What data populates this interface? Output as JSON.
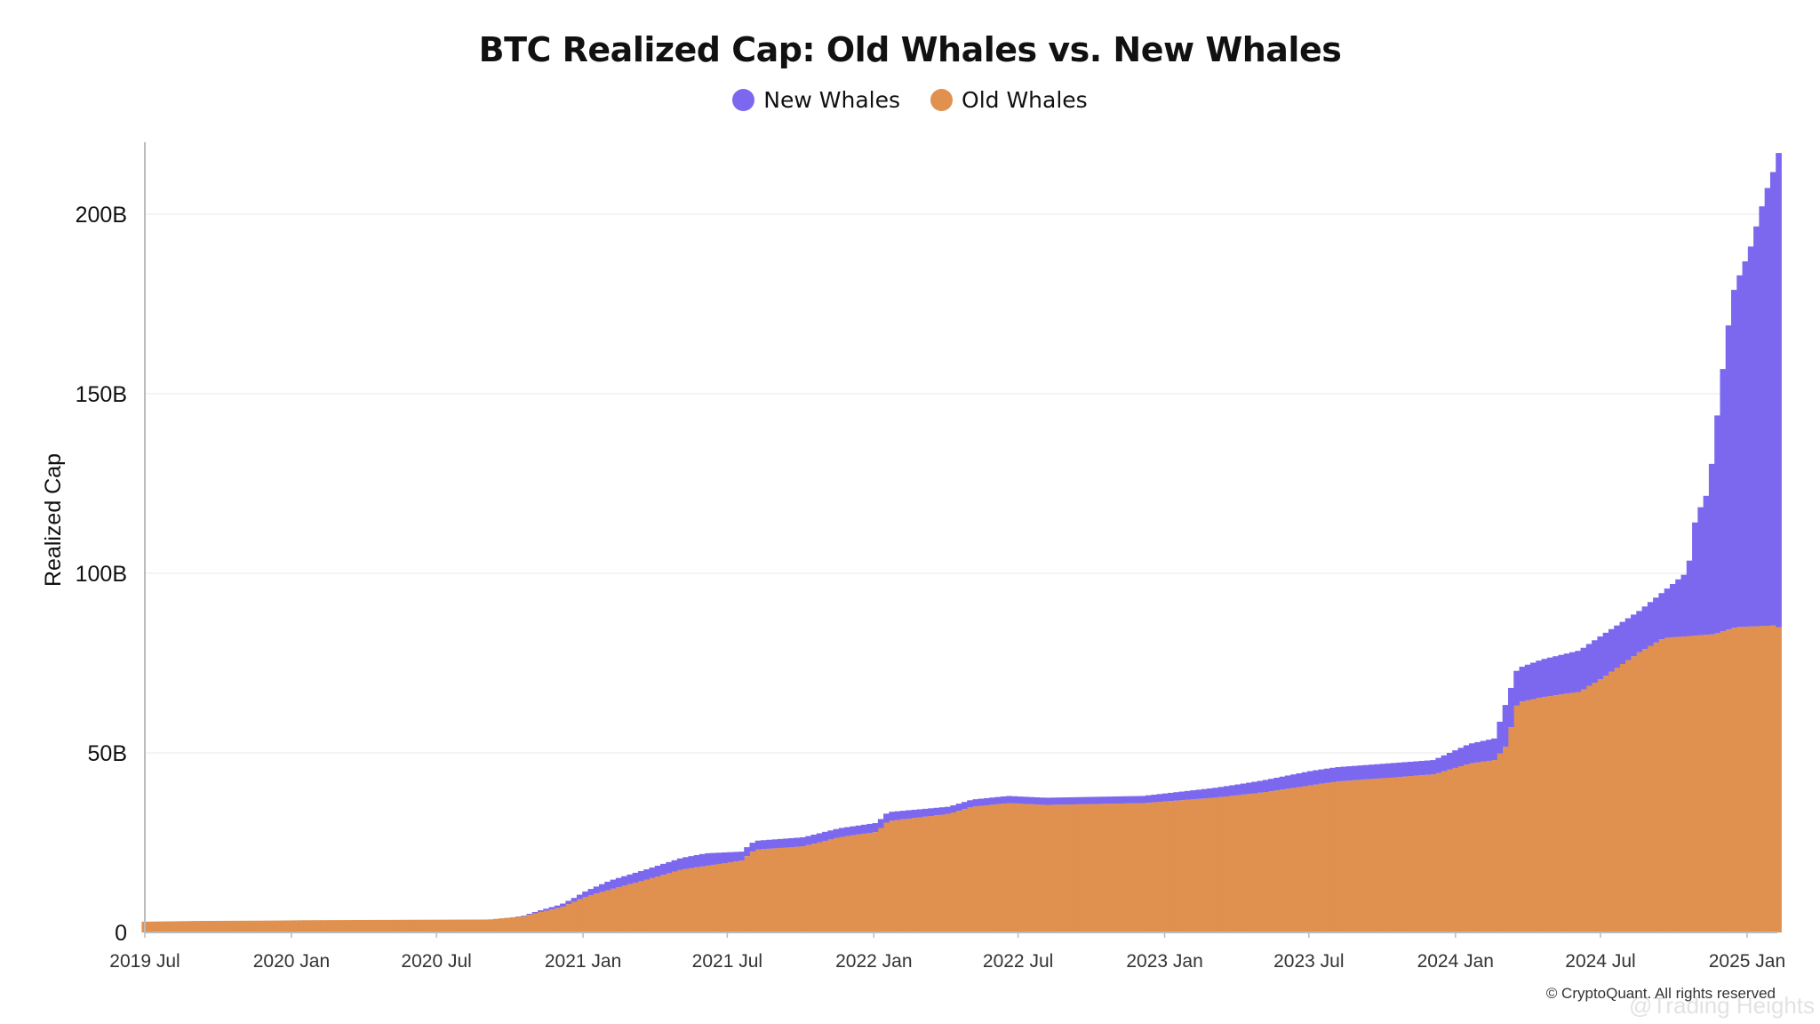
{
  "colors": {
    "new_whales": "#7b68ee",
    "old_whales": "#e0914f",
    "axis": "#bbbbbb",
    "grid": "#f0f0f0"
  },
  "copyright": "© CryptoQuant. All rights reserved",
  "watermark": "@Trading Heights",
  "chart_data": {
    "type": "bar",
    "stacked": true,
    "title": "BTC Realized Cap: Old Whales vs. New Whales",
    "xlabel": "",
    "ylabel": "Realized Cap",
    "ylim": [
      0,
      220
    ],
    "y_unit": "B",
    "grid": true,
    "legend_position": "top-center",
    "y_ticks": [
      {
        "value": 0,
        "label": "0"
      },
      {
        "value": 50,
        "label": "50B"
      },
      {
        "value": 100,
        "label": "100B"
      },
      {
        "value": 150,
        "label": "150B"
      },
      {
        "value": 200,
        "label": "200B"
      }
    ],
    "x_range": [
      "2019-07-01",
      "2025-02-08"
    ],
    "x_ticks": [
      {
        "date": "2019-07-01",
        "label": "2019 Jul"
      },
      {
        "date": "2020-01-01",
        "label": "2020 Jan"
      },
      {
        "date": "2020-07-01",
        "label": "2020 Jul"
      },
      {
        "date": "2021-01-01",
        "label": "2021 Jan"
      },
      {
        "date": "2021-07-01",
        "label": "2021 Jul"
      },
      {
        "date": "2022-01-01",
        "label": "2022 Jan"
      },
      {
        "date": "2022-07-01",
        "label": "2022 Jul"
      },
      {
        "date": "2023-01-01",
        "label": "2023 Jan"
      },
      {
        "date": "2023-07-01",
        "label": "2023 Jul"
      },
      {
        "date": "2024-01-01",
        "label": "2024 Jan"
      },
      {
        "date": "2024-07-01",
        "label": "2024 Jul"
      },
      {
        "date": "2025-01-01",
        "label": "2025 Jan"
      }
    ],
    "series": [
      {
        "name": "Old Whales",
        "points": [
          [
            "2019-06-27",
            3.0
          ],
          [
            "2019-08-01",
            3.1
          ],
          [
            "2019-09-01",
            3.2
          ],
          [
            "2019-12-01",
            3.3
          ],
          [
            "2020-01-15",
            3.4
          ],
          [
            "2020-05-01",
            3.5
          ],
          [
            "2020-09-01",
            3.6
          ],
          [
            "2020-10-15",
            4.5
          ],
          [
            "2020-11-01",
            5.5
          ],
          [
            "2020-12-01",
            7.0
          ],
          [
            "2021-01-01",
            10.0
          ],
          [
            "2021-02-01",
            12.0
          ],
          [
            "2021-03-15",
            14.5
          ],
          [
            "2021-05-01",
            17.5
          ],
          [
            "2021-06-15",
            19.0
          ],
          [
            "2021-07-15",
            20.0
          ],
          [
            "2021-08-01",
            23.0
          ],
          [
            "2021-10-01",
            24.0
          ],
          [
            "2021-11-15",
            26.5
          ],
          [
            "2022-01-01",
            28.0
          ],
          [
            "2022-01-15",
            31.0
          ],
          [
            "2022-04-01",
            33.0
          ],
          [
            "2022-05-01",
            35.0
          ],
          [
            "2022-06-15",
            36.0
          ],
          [
            "2022-08-01",
            35.5
          ],
          [
            "2022-12-01",
            36.0
          ],
          [
            "2023-03-01",
            37.5
          ],
          [
            "2023-05-01",
            39.0
          ],
          [
            "2023-07-01",
            41.0
          ],
          [
            "2023-08-01",
            42.0
          ],
          [
            "2023-12-01",
            44.0
          ],
          [
            "2024-01-15",
            47.0
          ],
          [
            "2024-02-15",
            48.0
          ],
          [
            "2024-03-01",
            52.0
          ],
          [
            "2024-03-15",
            64.0
          ],
          [
            "2024-04-15",
            65.5
          ],
          [
            "2024-06-01",
            67.0
          ],
          [
            "2024-07-01",
            71.0
          ],
          [
            "2024-08-15",
            78.0
          ],
          [
            "2024-09-15",
            82.0
          ],
          [
            "2024-11-15",
            83.0
          ],
          [
            "2024-12-15",
            85.0
          ],
          [
            "2025-02-05",
            85.5
          ],
          [
            "2025-02-08",
            84.0
          ]
        ]
      },
      {
        "name": "New Whales",
        "points": [
          [
            "2019-06-27",
            0.0
          ],
          [
            "2020-10-01",
            0.0
          ],
          [
            "2020-12-15",
            1.0
          ],
          [
            "2021-02-01",
            2.5
          ],
          [
            "2021-04-01",
            3.0
          ],
          [
            "2021-06-01",
            3.5
          ],
          [
            "2021-07-15",
            2.5
          ],
          [
            "2021-10-01",
            2.5
          ],
          [
            "2022-01-15",
            2.5
          ],
          [
            "2022-04-01",
            2.0
          ],
          [
            "2022-06-15",
            2.0
          ],
          [
            "2022-12-01",
            2.0
          ],
          [
            "2023-04-01",
            3.0
          ],
          [
            "2023-07-01",
            4.0
          ],
          [
            "2023-12-01",
            4.0
          ],
          [
            "2024-01-15",
            5.5
          ],
          [
            "2024-02-15",
            6.0
          ],
          [
            "2024-03-01",
            12.0
          ],
          [
            "2024-03-15",
            9.5
          ],
          [
            "2024-04-15",
            10.5
          ],
          [
            "2024-06-01",
            11.5
          ],
          [
            "2024-07-01",
            12.0
          ],
          [
            "2024-08-15",
            11.5
          ],
          [
            "2024-09-15",
            13.0
          ],
          [
            "2024-10-15",
            18.0
          ],
          [
            "2024-10-25",
            33.0
          ],
          [
            "2024-11-10",
            40.0
          ],
          [
            "2024-11-25",
            68.0
          ],
          [
            "2024-12-10",
            93.0
          ],
          [
            "2025-01-01",
            105.0
          ],
          [
            "2025-01-20",
            120.0
          ],
          [
            "2025-02-05",
            130.0
          ],
          [
            "2025-02-08",
            136.0
          ]
        ]
      }
    ]
  }
}
